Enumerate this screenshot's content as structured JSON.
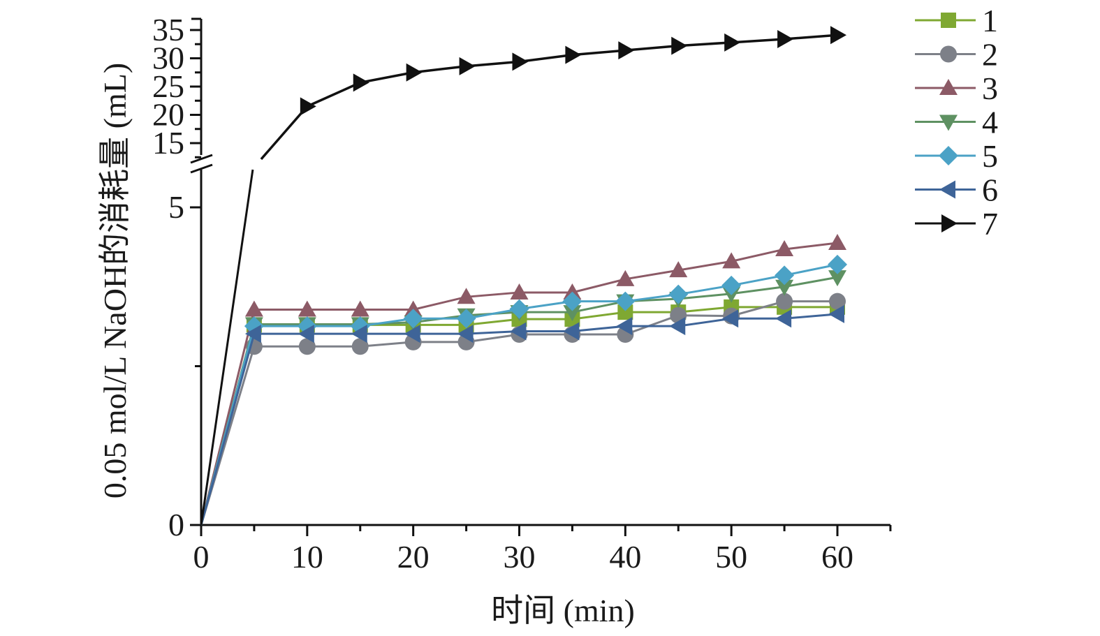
{
  "chart_data": {
    "type": "line",
    "title": "",
    "xlabel": "时间 (min)",
    "ylabel": "0.05 mol/L NaOH的消耗量 (mL)",
    "x": [
      0,
      5,
      10,
      15,
      20,
      25,
      30,
      35,
      40,
      45,
      50,
      55,
      60
    ],
    "xlim": [
      0,
      65
    ],
    "x_ticks": [
      "0",
      "10",
      "20",
      "30",
      "40",
      "50",
      "60"
    ],
    "x_tick_values": [
      0,
      10,
      20,
      30,
      40,
      50,
      60
    ],
    "y_axis_broken": true,
    "y_lower": {
      "range": [
        0,
        5.6
      ],
      "ticks": [
        "0",
        "5"
      ],
      "tick_values": [
        0,
        5
      ],
      "minor_tick_values": [
        2.5
      ]
    },
    "y_upper": {
      "range": [
        12,
        37
      ],
      "ticks": [
        "15",
        "20",
        "25",
        "30",
        "35"
      ],
      "tick_values": [
        15,
        20,
        25,
        30,
        35
      ]
    },
    "grid": false,
    "legend_position": "right",
    "series": [
      {
        "name": "1",
        "color": "#7fa832",
        "marker": "square",
        "values": [
          0,
          3.15,
          3.15,
          3.15,
          3.15,
          3.15,
          3.24,
          3.24,
          3.35,
          3.35,
          3.43,
          3.43,
          3.43
        ]
      },
      {
        "name": "2",
        "color": "#7d8088",
        "marker": "circle",
        "values": [
          0,
          2.81,
          2.81,
          2.81,
          2.88,
          2.88,
          3.0,
          3.0,
          3.0,
          3.3,
          3.29,
          3.52,
          3.52
        ]
      },
      {
        "name": "3",
        "color": "#8c5a66",
        "marker": "triangle-up",
        "values": [
          0,
          3.39,
          3.39,
          3.39,
          3.39,
          3.59,
          3.66,
          3.66,
          3.87,
          4.01,
          4.15,
          4.34,
          4.44
        ]
      },
      {
        "name": "4",
        "color": "#5e9162",
        "marker": "triangle-down",
        "values": [
          0,
          3.16,
          3.16,
          3.16,
          3.19,
          3.3,
          3.35,
          3.35,
          3.52,
          3.56,
          3.64,
          3.75,
          3.9
        ]
      },
      {
        "name": "5",
        "color": "#4ba2c6",
        "marker": "diamond",
        "values": [
          0,
          3.13,
          3.13,
          3.13,
          3.25,
          3.25,
          3.4,
          3.52,
          3.52,
          3.63,
          3.77,
          3.93,
          4.1
        ]
      },
      {
        "name": "6",
        "color": "#3e6498",
        "marker": "triangle-left",
        "values": [
          0,
          3.01,
          3.01,
          3.01,
          3.01,
          3.01,
          3.05,
          3.05,
          3.13,
          3.13,
          3.25,
          3.25,
          3.32
        ]
      },
      {
        "name": "7",
        "color": "#111111",
        "marker": "triangle-right",
        "values": [
          0,
          12,
          21.5,
          25.7,
          27.5,
          28.6,
          29.4,
          30.6,
          31.4,
          32.2,
          32.8,
          33.4,
          34.1
        ],
        "marker_hidden_at": [
          0,
          5
        ]
      }
    ]
  }
}
